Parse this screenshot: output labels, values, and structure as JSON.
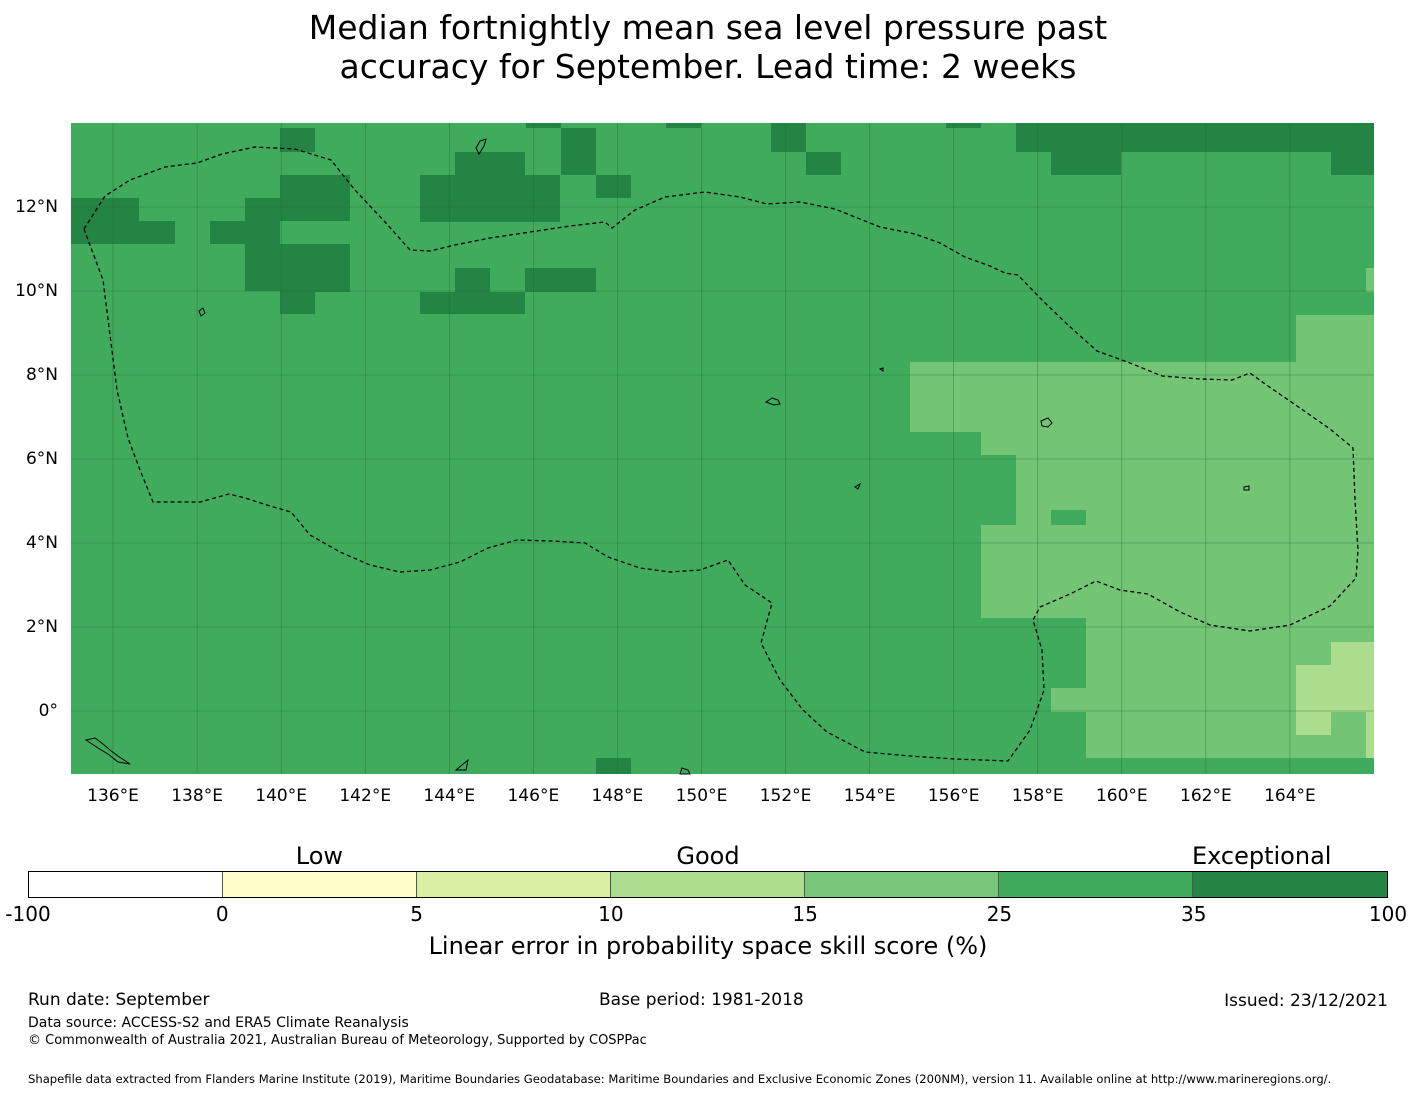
{
  "title": {
    "line1": "Median fortnightly mean sea level pressure past",
    "line2": "accuracy for September. Lead time: 2 weeks"
  },
  "map": {
    "lon_range": [
      135.0,
      166.0
    ],
    "lat_range": [
      -1.5,
      14.0
    ],
    "x_ticks": [
      "136°E",
      "138°E",
      "140°E",
      "142°E",
      "144°E",
      "146°E",
      "148°E",
      "150°E",
      "152°E",
      "154°E",
      "156°E",
      "158°E",
      "160°E",
      "162°E",
      "164°E"
    ],
    "y_ticks": [
      "12°N",
      "10°N",
      "8°N",
      "6°N",
      "4°N",
      "2°N",
      "0°"
    ],
    "gridlines": true,
    "boundary_style": "dashed",
    "colors": {
      "c10_15": "#acdc8e",
      "c15_25": "#74c476",
      "c25_35": "#41ab5d",
      "c35_100": "#238443",
      "grid": "#2a6b3a",
      "boundary": "#000000"
    }
  },
  "colorbar": {
    "categories": [
      {
        "label": "Low",
        "at_tick": 1.5
      },
      {
        "label": "Good",
        "at_tick": 3.5
      },
      {
        "label": "Exceptional",
        "at_tick": 6.35
      }
    ],
    "tick_labels": [
      "-100",
      "0",
      "5",
      "10",
      "15",
      "25",
      "35",
      "100"
    ],
    "segment_colors": [
      "#ffffff",
      "#ffffcc",
      "#d9f0a3",
      "#addd8e",
      "#78c679",
      "#41ab5d",
      "#238443"
    ],
    "title": "Linear error in probability space skill score (%)"
  },
  "footer": {
    "run_date": "Run date: September",
    "base_period": "Base period: 1981-2018",
    "issued": "Issued: 23/12/2021",
    "data_source": "Data source: ACCESS-S2 and ERA5 Climate Reanalysis",
    "copyright": "© Commonwealth of Australia 2021, Australian Bureau of Meteorology, Supported by COSPPac",
    "shapefile": "Shapefile data extracted from Flanders Marine Institute (2019), Maritime Boundaries Geodatabase: Maritime Boundaries and Exclusive Economic Zones (200NM), version 11. Available online at http://www.marineregions.org/."
  }
}
